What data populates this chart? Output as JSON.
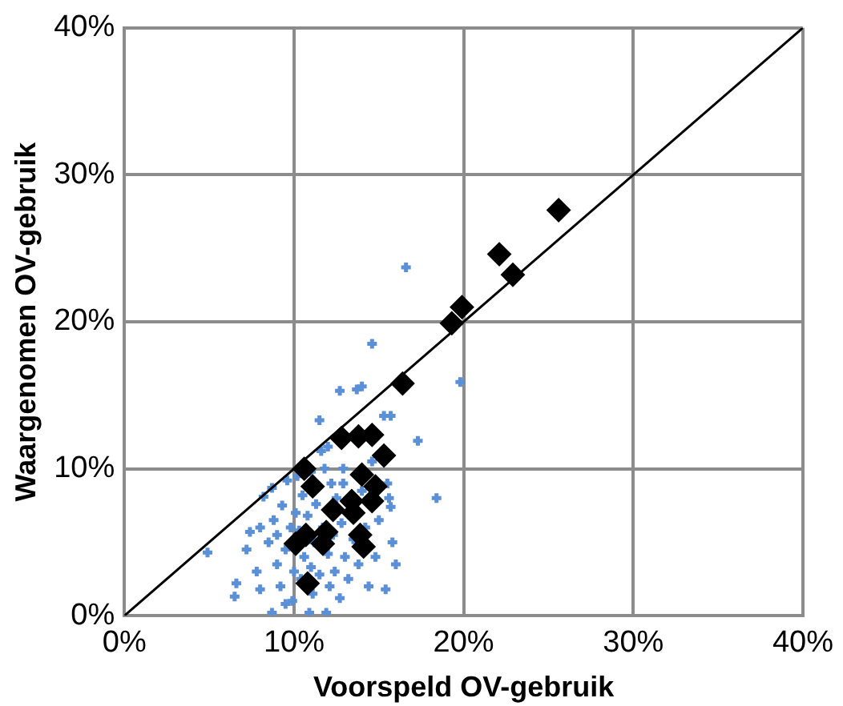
{
  "chart_data": {
    "type": "scatter",
    "xlabel": "Voorspeld OV-gebruik",
    "ylabel": "Waargenomen OV-gebruik",
    "xlim": [
      0,
      40
    ],
    "ylim": [
      0,
      40
    ],
    "xticks": [
      {
        "value": 0,
        "label": "0%"
      },
      {
        "value": 10,
        "label": "10%"
      },
      {
        "value": 20,
        "label": "20%"
      },
      {
        "value": 30,
        "label": "30%"
      },
      {
        "value": 40,
        "label": "40%"
      }
    ],
    "yticks": [
      {
        "value": 0,
        "label": "0%"
      },
      {
        "value": 10,
        "label": "10%"
      },
      {
        "value": 20,
        "label": "20%"
      },
      {
        "value": 30,
        "label": "30%"
      },
      {
        "value": 40,
        "label": "40%"
      }
    ],
    "grid": true,
    "legend": false,
    "series": [
      {
        "marker": "cross",
        "color": "#5b8fd6",
        "x": [
          4.9,
          6.6,
          6.5,
          7.2,
          7.4,
          8.2,
          8.7,
          8.7,
          7.8,
          8.0,
          8.5,
          8.8,
          9.0,
          9.2,
          9.3,
          9.5,
          9.6,
          9.8,
          9.9,
          10.0,
          10.1,
          10.3,
          10.4,
          10.5,
          10.6,
          10.8,
          10.9,
          11.0,
          11.1,
          11.2,
          11.3,
          11.5,
          11.5,
          11.6,
          11.7,
          11.8,
          11.9,
          12.0,
          12.1,
          12.2,
          12.3,
          12.4,
          12.5,
          12.7,
          12.7,
          12.8,
          12.9,
          12.9,
          13.0,
          13.2,
          13.5,
          13.7,
          13.8,
          14.0,
          14.0,
          14.2,
          14.4,
          14.6,
          14.6,
          14.8,
          15.0,
          15.3,
          15.4,
          15.5,
          15.6,
          15.7,
          15.7,
          15.8,
          16.0,
          16.6,
          17.3,
          18.4,
          19.8,
          8.0,
          9.0,
          10.2,
          11.0,
          12.0,
          9.5
        ],
        "values": [
          4.3,
          2.2,
          1.3,
          4.5,
          5.7,
          8.1,
          8.7,
          0.2,
          3.0,
          1.8,
          5.0,
          6.5,
          3.5,
          2.0,
          7.5,
          4.5,
          9.2,
          6.0,
          1.0,
          3.0,
          7.0,
          5.8,
          2.5,
          8.2,
          4.0,
          6.8,
          0.2,
          3.3,
          1.5,
          5.0,
          7.6,
          13.3,
          2.8,
          11.2,
          6.0,
          10.0,
          0.2,
          4.2,
          2.0,
          9.0,
          5.5,
          3.0,
          8.0,
          15.3,
          1.2,
          6.3,
          10.0,
          9.0,
          4.0,
          2.5,
          5.2,
          15.4,
          3.5,
          15.6,
          8.5,
          6.0,
          2.0,
          18.5,
          10.5,
          4.0,
          6.5,
          13.6,
          1.8,
          9.0,
          8.0,
          13.6,
          7.4,
          5.0,
          3.5,
          23.7,
          11.9,
          8.0,
          15.9,
          6.0,
          5.5,
          9.5,
          9.8,
          11.5,
          0.8
        ]
      },
      {
        "marker": "diamond",
        "color": "#000000",
        "x": [
          25.6,
          22.1,
          22.9,
          19.9,
          19.3,
          16.4,
          10.6,
          11.1,
          12.8,
          13.8,
          14.6,
          15.3,
          14.0,
          14.8,
          14.6,
          13.4,
          13.5,
          12.3,
          11.9,
          10.7,
          10.1,
          11.7,
          13.9,
          14.1,
          10.8
        ],
        "values": [
          27.6,
          24.6,
          23.2,
          21.0,
          19.9,
          15.8,
          10.0,
          8.8,
          12.1,
          12.2,
          12.3,
          10.9,
          9.6,
          8.8,
          7.8,
          7.8,
          7.0,
          7.2,
          5.7,
          5.5,
          4.9,
          4.9,
          5.5,
          4.7,
          2.2
        ]
      },
      {
        "type": "line",
        "marker": "none",
        "color": "#000000",
        "x": [
          0,
          40
        ],
        "values": [
          0,
          40
        ]
      }
    ]
  }
}
